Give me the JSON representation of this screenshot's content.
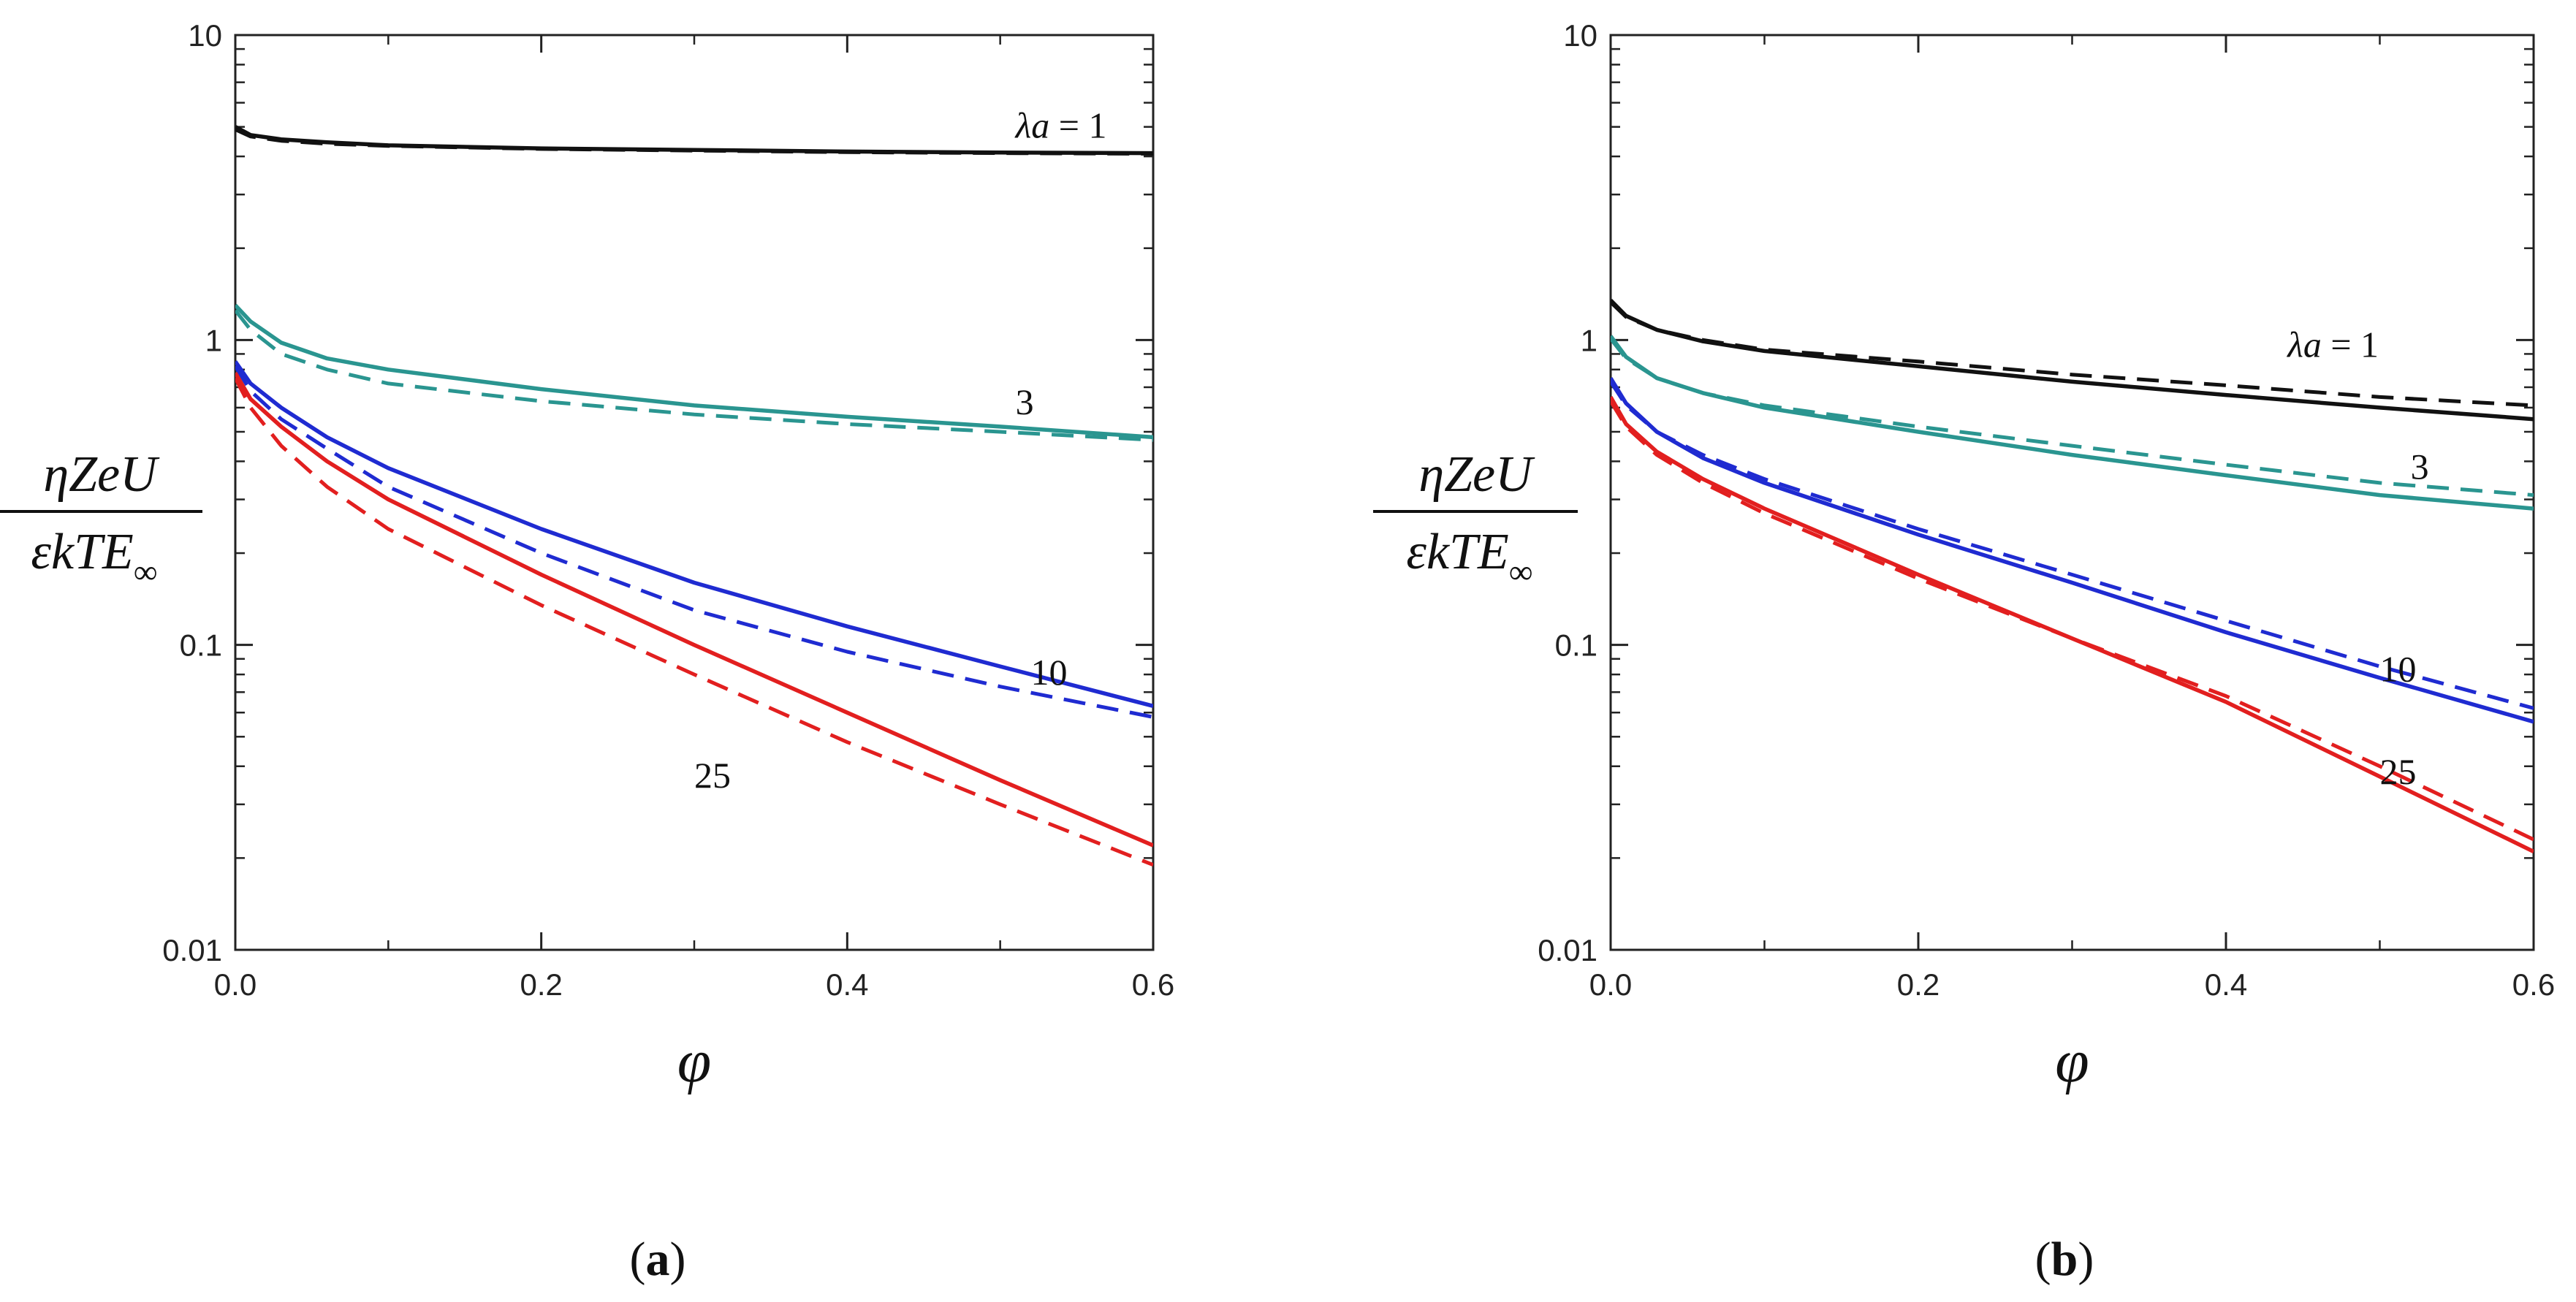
{
  "chart_data": [
    {
      "type": "line",
      "panel_label": "a",
      "xlabel": "φ",
      "ylabel": {
        "numerator": "ηZeU",
        "denominator_main": "εkTE",
        "denominator_sub": "∞"
      },
      "xlim": [
        0,
        0.6
      ],
      "ylim": [
        0.01,
        10
      ],
      "y_scale": "log",
      "x_ticks": [
        "0.0",
        "0.2",
        "0.4",
        "0.6"
      ],
      "y_ticks": [
        "0.01",
        "0.1",
        "1",
        "10"
      ],
      "curve_labels": [
        {
          "text": "λa = 1",
          "x": 0.51,
          "y": 4.6
        },
        {
          "text": "3",
          "x": 0.51,
          "y": 0.57
        },
        {
          "text": "10",
          "x": 0.52,
          "y": 0.074
        },
        {
          "text": "25",
          "x": 0.3,
          "y": 0.034
        }
      ],
      "series": [
        {
          "color": "#111111",
          "dash": false,
          "points": [
            [
              0,
              5.0
            ],
            [
              0.01,
              4.7
            ],
            [
              0.03,
              4.55
            ],
            [
              0.06,
              4.45
            ],
            [
              0.1,
              4.35
            ],
            [
              0.2,
              4.25
            ],
            [
              0.3,
              4.2
            ],
            [
              0.4,
              4.15
            ],
            [
              0.5,
              4.12
            ],
            [
              0.6,
              4.1
            ]
          ]
        },
        {
          "color": "#111111",
          "dash": true,
          "points": [
            [
              0,
              4.9
            ],
            [
              0.01,
              4.65
            ],
            [
              0.03,
              4.5
            ],
            [
              0.06,
              4.4
            ],
            [
              0.1,
              4.33
            ],
            [
              0.2,
              4.23
            ],
            [
              0.3,
              4.18
            ],
            [
              0.4,
              4.13
            ],
            [
              0.5,
              4.1
            ],
            [
              0.6,
              4.08
            ]
          ]
        },
        {
          "color": "#2a9590",
          "dash": false,
          "points": [
            [
              0,
              1.3
            ],
            [
              0.01,
              1.15
            ],
            [
              0.03,
              0.98
            ],
            [
              0.06,
              0.87
            ],
            [
              0.1,
              0.8
            ],
            [
              0.2,
              0.69
            ],
            [
              0.3,
              0.61
            ],
            [
              0.4,
              0.56
            ],
            [
              0.5,
              0.52
            ],
            [
              0.6,
              0.48
            ]
          ]
        },
        {
          "color": "#2a9590",
          "dash": true,
          "points": [
            [
              0,
              1.25
            ],
            [
              0.01,
              1.08
            ],
            [
              0.03,
              0.9
            ],
            [
              0.06,
              0.8
            ],
            [
              0.1,
              0.72
            ],
            [
              0.2,
              0.63
            ],
            [
              0.3,
              0.57
            ],
            [
              0.4,
              0.53
            ],
            [
              0.5,
              0.5
            ],
            [
              0.6,
              0.47
            ]
          ]
        },
        {
          "color": "#1f2bd1",
          "dash": false,
          "points": [
            [
              0,
              0.85
            ],
            [
              0.01,
              0.72
            ],
            [
              0.03,
              0.6
            ],
            [
              0.06,
              0.48
            ],
            [
              0.1,
              0.38
            ],
            [
              0.2,
              0.24
            ],
            [
              0.3,
              0.16
            ],
            [
              0.4,
              0.115
            ],
            [
              0.5,
              0.085
            ],
            [
              0.6,
              0.063
            ]
          ]
        },
        {
          "color": "#1f2bd1",
          "dash": true,
          "points": [
            [
              0,
              0.82
            ],
            [
              0.01,
              0.68
            ],
            [
              0.03,
              0.55
            ],
            [
              0.06,
              0.44
            ],
            [
              0.1,
              0.33
            ],
            [
              0.2,
              0.2
            ],
            [
              0.3,
              0.13
            ],
            [
              0.4,
              0.095
            ],
            [
              0.5,
              0.073
            ],
            [
              0.6,
              0.058
            ]
          ]
        },
        {
          "color": "#e21f1f",
          "dash": false,
          "points": [
            [
              0,
              0.78
            ],
            [
              0.01,
              0.64
            ],
            [
              0.03,
              0.52
            ],
            [
              0.06,
              0.4
            ],
            [
              0.1,
              0.3
            ],
            [
              0.2,
              0.17
            ],
            [
              0.3,
              0.1
            ],
            [
              0.4,
              0.06
            ],
            [
              0.5,
              0.036
            ],
            [
              0.6,
              0.022
            ]
          ]
        },
        {
          "color": "#e21f1f",
          "dash": true,
          "points": [
            [
              0,
              0.75
            ],
            [
              0.01,
              0.6
            ],
            [
              0.03,
              0.45
            ],
            [
              0.06,
              0.33
            ],
            [
              0.1,
              0.24
            ],
            [
              0.2,
              0.135
            ],
            [
              0.3,
              0.08
            ],
            [
              0.4,
              0.048
            ],
            [
              0.5,
              0.03
            ],
            [
              0.6,
              0.019
            ]
          ]
        }
      ]
    },
    {
      "type": "line",
      "panel_label": "b",
      "xlabel": "φ",
      "ylabel": {
        "numerator": "ηZeU",
        "denominator_main": "εkTE",
        "denominator_sub": "∞"
      },
      "xlim": [
        0,
        0.6
      ],
      "ylim": [
        0.01,
        10
      ],
      "y_scale": "log",
      "x_ticks": [
        "0.0",
        "0.2",
        "0.4",
        "0.6"
      ],
      "y_ticks": [
        "0.01",
        "0.1",
        "1",
        "10"
      ],
      "curve_labels": [
        {
          "text": "λa = 1",
          "x": 0.44,
          "y": 0.88
        },
        {
          "text": "3",
          "x": 0.52,
          "y": 0.35
        },
        {
          "text": "10",
          "x": 0.5,
          "y": 0.076
        },
        {
          "text": "25",
          "x": 0.5,
          "y": 0.035
        }
      ],
      "series": [
        {
          "color": "#111111",
          "dash": false,
          "points": [
            [
              0,
              1.35
            ],
            [
              0.01,
              1.2
            ],
            [
              0.03,
              1.08
            ],
            [
              0.06,
              0.99
            ],
            [
              0.1,
              0.92
            ],
            [
              0.2,
              0.82
            ],
            [
              0.3,
              0.73
            ],
            [
              0.4,
              0.66
            ],
            [
              0.5,
              0.6
            ],
            [
              0.6,
              0.55
            ]
          ]
        },
        {
          "color": "#111111",
          "dash": true,
          "points": [
            [
              0,
              1.33
            ],
            [
              0.01,
              1.19
            ],
            [
              0.03,
              1.08
            ],
            [
              0.06,
              1.0
            ],
            [
              0.1,
              0.93
            ],
            [
              0.2,
              0.85
            ],
            [
              0.3,
              0.77
            ],
            [
              0.4,
              0.71
            ],
            [
              0.5,
              0.65
            ],
            [
              0.6,
              0.61
            ]
          ]
        },
        {
          "color": "#2a9590",
          "dash": false,
          "points": [
            [
              0,
              1.03
            ],
            [
              0.01,
              0.88
            ],
            [
              0.03,
              0.75
            ],
            [
              0.06,
              0.67
            ],
            [
              0.1,
              0.6
            ],
            [
              0.2,
              0.5
            ],
            [
              0.3,
              0.42
            ],
            [
              0.4,
              0.36
            ],
            [
              0.5,
              0.31
            ],
            [
              0.6,
              0.28
            ]
          ]
        },
        {
          "color": "#2a9590",
          "dash": true,
          "points": [
            [
              0,
              1.01
            ],
            [
              0.01,
              0.87
            ],
            [
              0.03,
              0.75
            ],
            [
              0.06,
              0.67
            ],
            [
              0.1,
              0.61
            ],
            [
              0.2,
              0.52
            ],
            [
              0.3,
              0.45
            ],
            [
              0.4,
              0.39
            ],
            [
              0.5,
              0.34
            ],
            [
              0.6,
              0.31
            ]
          ]
        },
        {
          "color": "#1f2bd1",
          "dash": false,
          "points": [
            [
              0,
              0.75
            ],
            [
              0.01,
              0.62
            ],
            [
              0.03,
              0.5
            ],
            [
              0.06,
              0.41
            ],
            [
              0.1,
              0.34
            ],
            [
              0.2,
              0.23
            ],
            [
              0.3,
              0.16
            ],
            [
              0.4,
              0.11
            ],
            [
              0.5,
              0.078
            ],
            [
              0.6,
              0.056
            ]
          ]
        },
        {
          "color": "#1f2bd1",
          "dash": true,
          "points": [
            [
              0,
              0.73
            ],
            [
              0.01,
              0.61
            ],
            [
              0.03,
              0.5
            ],
            [
              0.06,
              0.42
            ],
            [
              0.1,
              0.35
            ],
            [
              0.2,
              0.24
            ],
            [
              0.3,
              0.17
            ],
            [
              0.4,
              0.12
            ],
            [
              0.5,
              0.085
            ],
            [
              0.6,
              0.062
            ]
          ]
        },
        {
          "color": "#e21f1f",
          "dash": false,
          "points": [
            [
              0,
              0.65
            ],
            [
              0.01,
              0.53
            ],
            [
              0.03,
              0.43
            ],
            [
              0.06,
              0.35
            ],
            [
              0.1,
              0.28
            ],
            [
              0.2,
              0.17
            ],
            [
              0.3,
              0.105
            ],
            [
              0.4,
              0.065
            ],
            [
              0.5,
              0.037
            ],
            [
              0.6,
              0.021
            ]
          ]
        },
        {
          "color": "#e21f1f",
          "dash": true,
          "points": [
            [
              0,
              0.63
            ],
            [
              0.01,
              0.52
            ],
            [
              0.03,
              0.42
            ],
            [
              0.06,
              0.34
            ],
            [
              0.1,
              0.27
            ],
            [
              0.2,
              0.165
            ],
            [
              0.3,
              0.105
            ],
            [
              0.4,
              0.068
            ],
            [
              0.5,
              0.04
            ],
            [
              0.6,
              0.023
            ]
          ]
        }
      ]
    }
  ]
}
